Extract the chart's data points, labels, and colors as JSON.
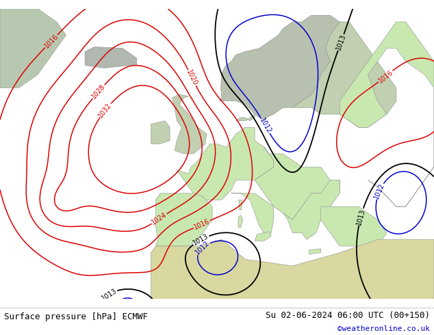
{
  "title_left": "Surface pressure [hPa] ECMWF",
  "title_right": "Su 02-06-2024 06:00 UTC (00+150)",
  "copyright": "©weatheronline.co.uk",
  "ocean_color": "#e8e8e8",
  "land_color": "#c8e8b0",
  "land_edge_color": "#909090",
  "isobar_red": "#dd0000",
  "isobar_black": "#000000",
  "isobar_blue": "#0000cc",
  "figsize": [
    6.34,
    4.9
  ],
  "dpi": 100,
  "font_size_footer": 9,
  "font_size_labels": 7,
  "map_lon_min": -42,
  "map_lon_max": 50,
  "map_lat_min": 28,
  "map_lat_max": 72
}
